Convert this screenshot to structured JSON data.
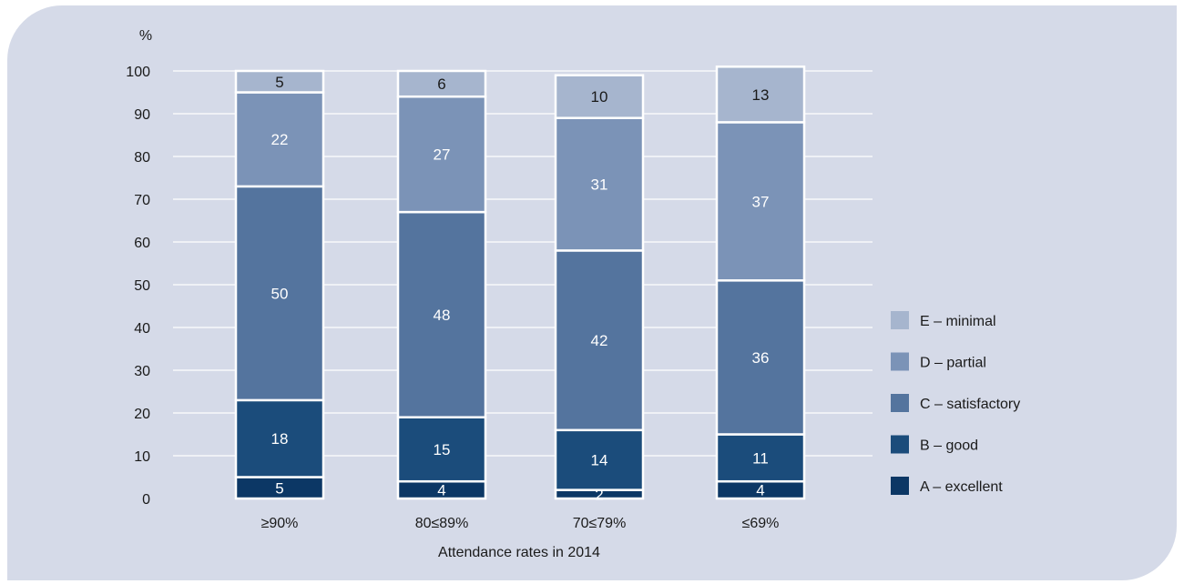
{
  "chart_data": {
    "type": "bar",
    "stacked": true,
    "title": "",
    "xlabel": "Attendance rates in 2014",
    "ylabel": "%",
    "ylim": [
      0,
      100
    ],
    "yticks": [
      0,
      10,
      20,
      30,
      40,
      50,
      60,
      70,
      80,
      90,
      100
    ],
    "grid": true,
    "legend_position": "right",
    "categories": [
      "≥90%",
      "80≤89%",
      "70≤79%",
      "≤69%"
    ],
    "series": [
      {
        "name": "A – excellent",
        "color": "#0c3765",
        "label_color": "#ffffff",
        "values": [
          5,
          4,
          2,
          4
        ]
      },
      {
        "name": "B – good",
        "color": "#1b4c7b",
        "label_color": "#ffffff",
        "values": [
          18,
          15,
          14,
          11
        ]
      },
      {
        "name": "C – satisfactory",
        "color": "#54749e",
        "label_color": "#ffffff",
        "values": [
          50,
          48,
          42,
          36
        ]
      },
      {
        "name": "D – partial",
        "color": "#7b93b7",
        "label_color": "#ffffff",
        "values": [
          22,
          27,
          31,
          37
        ]
      },
      {
        "name": "E – minimal",
        "color": "#a6b5ce",
        "label_color": "#1a1a1a",
        "values": [
          5,
          6,
          10,
          13
        ]
      }
    ]
  }
}
